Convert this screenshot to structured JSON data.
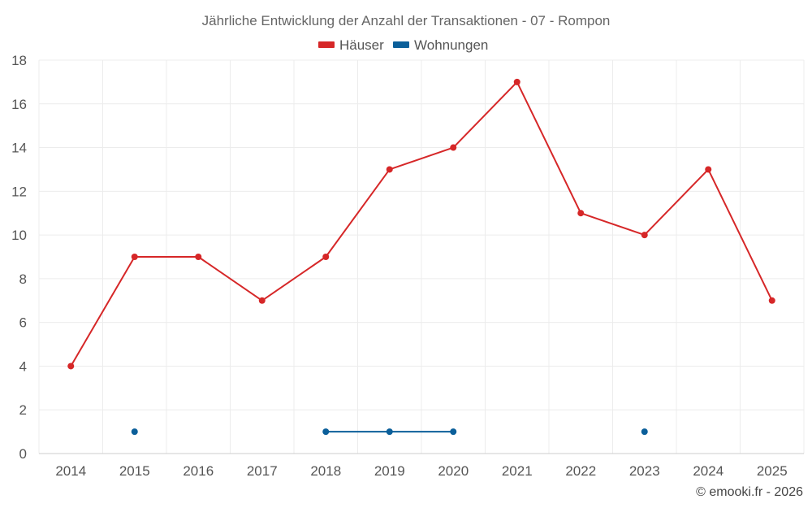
{
  "chart_data": {
    "type": "line",
    "title": "Jährliche Entwicklung der Anzahl der Transaktionen - 07 - Rompon",
    "categories": [
      "2014",
      "2015",
      "2016",
      "2017",
      "2018",
      "2019",
      "2020",
      "2021",
      "2022",
      "2023",
      "2024",
      "2025"
    ],
    "series": [
      {
        "name": "Häuser",
        "color": "#d62728",
        "values": [
          4,
          9,
          9,
          7,
          9,
          13,
          14,
          17,
          11,
          10,
          13,
          7
        ]
      },
      {
        "name": "Wohnungen",
        "color": "#0b5f9a",
        "values": [
          null,
          1,
          null,
          null,
          1,
          1,
          1,
          null,
          null,
          1,
          null,
          null
        ]
      }
    ],
    "ylim": [
      0,
      18
    ],
    "yticks": [
      0,
      2,
      4,
      6,
      8,
      10,
      12,
      14,
      16,
      18
    ],
    "xlabel": "",
    "ylabel": "",
    "grid": true,
    "legend_position": "top-center"
  },
  "credit": "© emooki.fr - 2026"
}
